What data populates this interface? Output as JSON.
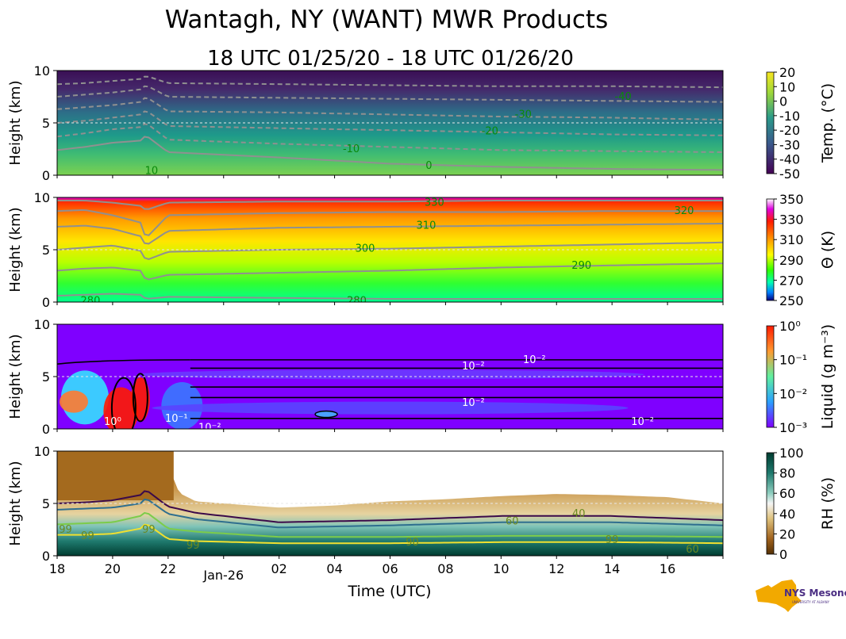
{
  "title": "Wantagh, NY (WANT) MWR Products",
  "subtitle": "18 UTC 01/25/20 - 18 UTC 01/26/20",
  "xlabel": "Time (UTC)",
  "ylabel": "Height (km)",
  "x_ticks": [
    "18",
    "20",
    "22",
    "Jan-26",
    "02",
    "04",
    "06",
    "08",
    "10",
    "12",
    "14",
    "16"
  ],
  "y_ticks": [
    "0",
    "5",
    "10"
  ],
  "logo": {
    "text": "NYS Mesonet",
    "subtext": "UNIVERSITY AT ALBANY"
  },
  "chart_data": [
    {
      "type": "heatmap",
      "name": "temperature",
      "xlim": [
        18,
        42
      ],
      "ylim": [
        0,
        10
      ],
      "ylabel": "Height (km)",
      "colorbar_label": "Temp. ($^\\circ$C)",
      "colorbar_label_display": "Temp. (°C)",
      "colorbar_ticks": [
        "20",
        "10",
        "0",
        "-10",
        "-20",
        "-30",
        "-40",
        "-50"
      ],
      "colorbar_range": [
        -50,
        20
      ],
      "contour_labels": [
        {
          "text": "10",
          "t": 21.4,
          "h": 0.4
        },
        {
          "text": "0",
          "t": 31.4,
          "h": 0.9
        },
        {
          "text": "-10",
          "t": 28.6,
          "h": 2.5
        },
        {
          "text": "-20",
          "t": 33.6,
          "h": 4.2
        },
        {
          "text": "-30",
          "t": 34.8,
          "h": 5.8
        },
        {
          "text": "-40",
          "t": 38.4,
          "h": 7.5
        }
      ],
      "isotherm_heights_km": {
        "times": [
          18,
          19,
          20,
          21,
          21.2,
          22,
          26,
          30,
          34,
          38,
          42
        ],
        "0": [
          2.4,
          2.7,
          3.1,
          3.3,
          3.8,
          2.2,
          1.7,
          1.1,
          0.8,
          0.6,
          0.5
        ],
        "-10": [
          3.7,
          4.0,
          4.4,
          4.6,
          5.0,
          3.4,
          3.0,
          2.7,
          2.4,
          2.3,
          2.2
        ],
        "-20": [
          5.0,
          5.2,
          5.5,
          5.8,
          6.2,
          4.7,
          4.5,
          4.3,
          4.1,
          3.9,
          3.8
        ],
        "-30": [
          6.3,
          6.5,
          6.7,
          7.0,
          7.5,
          6.1,
          6.0,
          5.8,
          5.6,
          5.5,
          5.3
        ],
        "-40": [
          7.5,
          7.7,
          7.9,
          8.2,
          8.6,
          7.5,
          7.4,
          7.3,
          7.2,
          7.1,
          7.0
        ],
        "-50": [
          8.7,
          8.8,
          9.0,
          9.2,
          9.5,
          8.8,
          8.7,
          8.6,
          8.5,
          8.5,
          8.4
        ]
      }
    },
    {
      "type": "heatmap",
      "name": "potential_temperature",
      "xlim": [
        18,
        42
      ],
      "ylim": [
        0,
        10
      ],
      "ylabel": "Height (km)",
      "colorbar_label": "Θ (K)",
      "colorbar_ticks": [
        "350",
        "330",
        "310",
        "290",
        "270",
        "250"
      ],
      "colorbar_range": [
        250,
        360
      ],
      "contour_labels": [
        {
          "text": "280",
          "t": 19.2,
          "h": 0.1
        },
        {
          "text": "280",
          "t": 28.8,
          "h": 0.1
        },
        {
          "text": "290",
          "t": 36.9,
          "h": 3.5
        },
        {
          "text": "300",
          "t": 29.1,
          "h": 5.1
        },
        {
          "text": "310",
          "t": 31.3,
          "h": 7.3
        },
        {
          "text": "320",
          "t": 40.6,
          "h": 8.7
        },
        {
          "text": "330",
          "t": 31.6,
          "h": 9.5
        }
      ],
      "isentrope_heights_km": {
        "times": [
          18,
          19,
          20,
          21,
          21.2,
          22,
          26,
          30,
          34,
          38,
          42
        ],
        "280": [
          0.6,
          0.7,
          0.8,
          0.7,
          0.3,
          0.5,
          0.4,
          0.3,
          0.3,
          0.3,
          0.3
        ],
        "290": [
          3.0,
          3.2,
          3.3,
          3.0,
          2.1,
          2.6,
          2.8,
          3.0,
          3.3,
          3.5,
          3.7
        ],
        "300": [
          5.0,
          5.2,
          5.4,
          4.9,
          4.0,
          4.8,
          5.0,
          5.1,
          5.3,
          5.5,
          5.7
        ],
        "310": [
          7.2,
          7.3,
          7.0,
          6.3,
          5.4,
          6.8,
          7.1,
          7.2,
          7.3,
          7.4,
          7.5
        ],
        "320": [
          8.7,
          8.8,
          8.3,
          7.6,
          6.1,
          8.3,
          8.5,
          8.6,
          8.6,
          8.7,
          8.7
        ],
        "330": [
          9.7,
          9.7,
          9.5,
          9.2,
          8.8,
          9.5,
          9.6,
          9.6,
          9.7,
          9.7,
          9.7
        ]
      }
    },
    {
      "type": "heatmap",
      "name": "liquid_water",
      "xlim": [
        18,
        42
      ],
      "ylim": [
        0,
        10
      ],
      "ylabel": "Height (km)",
      "colorbar_label": "Liquid (g m⁻³)",
      "colorbar_ticks": [
        "10⁰",
        "10⁻¹",
        "10⁻²",
        "10⁻³"
      ],
      "colorbar_range": [
        0.001,
        1
      ],
      "colorbar_scale": "log",
      "contour_labels": [
        {
          "text": "10⁻²",
          "t": 33.0,
          "h": 6.0
        },
        {
          "text": "10⁻²",
          "t": 35.2,
          "h": 6.6
        },
        {
          "text": "10⁻²",
          "t": 33.0,
          "h": 2.5
        },
        {
          "text": "10⁻²",
          "t": 39.1,
          "h": 0.7
        },
        {
          "text": "10⁻²",
          "t": 23.5,
          "h": 0.1
        },
        {
          "text": "10⁻¹",
          "t": 22.3,
          "h": 1.0
        },
        {
          "text": "10⁰",
          "t": 20.0,
          "h": 0.7
        }
      ],
      "cloud_layer_tops_km": [
        6.6,
        5.8,
        4.0,
        3.0,
        1.0
      ]
    },
    {
      "type": "heatmap",
      "name": "relative_humidity",
      "xlim": [
        18,
        42
      ],
      "ylim": [
        0,
        10
      ],
      "ylabel": "Height (km)",
      "colorbar_label": "RH (%)",
      "colorbar_ticks": [
        "100",
        "80",
        "60",
        "40",
        "20",
        "0"
      ],
      "colorbar_range": [
        0,
        105
      ],
      "contour_labels": [
        {
          "text": "99",
          "t": 18.3,
          "h": 2.5
        },
        {
          "text": "99",
          "t": 19.1,
          "h": 1.9
        },
        {
          "text": "99",
          "t": 21.3,
          "h": 2.5
        },
        {
          "text": "99",
          "t": 22.9,
          "h": 1.0
        },
        {
          "text": "90",
          "t": 30.8,
          "h": 1.3
        },
        {
          "text": "99",
          "t": 38.0,
          "h": 1.5
        },
        {
          "text": "60",
          "t": 34.4,
          "h": 3.3
        },
        {
          "text": "40",
          "t": 36.8,
          "h": 4.0
        },
        {
          "text": "60",
          "t": 40.9,
          "h": 0.6
        }
      ],
      "rh_contour_heights_km": {
        "times": [
          18,
          19,
          20,
          21,
          21.2,
          22,
          23,
          26,
          30,
          34,
          38,
          42
        ],
        "40": [
          5.0,
          5.1,
          5.3,
          5.8,
          6.3,
          4.7,
          4.1,
          3.2,
          3.4,
          3.8,
          3.8,
          3.4
        ],
        "60": [
          4.4,
          4.5,
          4.6,
          5.0,
          5.5,
          4.0,
          3.5,
          2.7,
          2.9,
          3.2,
          3.2,
          2.9
        ],
        "90": [
          3.0,
          3.1,
          3.2,
          3.8,
          4.2,
          2.6,
          2.3,
          1.8,
          1.8,
          1.9,
          1.9,
          1.8
        ],
        "99": [
          2.0,
          2.0,
          2.1,
          2.6,
          3.1,
          1.6,
          1.4,
          1.2,
          1.2,
          1.3,
          1.3,
          1.2
        ]
      },
      "moist_layer_top_km": {
        "times": [
          18,
          19,
          20,
          20.5,
          21,
          21.2,
          21.8,
          22.4,
          23,
          24,
          25,
          26,
          27,
          28,
          30,
          32,
          34,
          36,
          38,
          40,
          42
        ],
        "values": [
          10,
          10,
          10,
          10,
          10,
          10,
          10,
          6.0,
          5.2,
          5.0,
          4.8,
          4.6,
          4.7,
          4.8,
          5.2,
          5.4,
          5.7,
          5.9,
          5.8,
          5.6,
          5.0
        ]
      }
    }
  ]
}
